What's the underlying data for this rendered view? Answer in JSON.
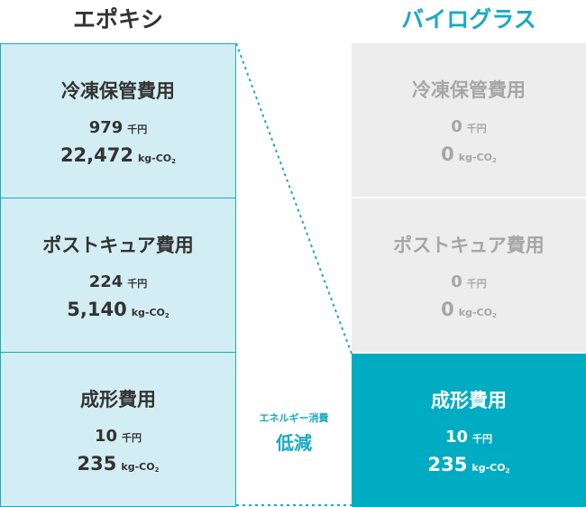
{
  "headers": {
    "left": "エポキシ",
    "right": "バイログラス"
  },
  "rows": [
    {
      "label": "冷凍保管費用",
      "left": {
        "cost": "979",
        "cost_unit": "千円",
        "co2": "22,472",
        "co2_unit": "kg-CO",
        "co2_sub": "2"
      },
      "right": {
        "cost": "0",
        "cost_unit": "千円",
        "co2": "0",
        "co2_unit": "kg-CO",
        "co2_sub": "2"
      }
    },
    {
      "label": "ポストキュア費用",
      "left": {
        "cost": "224",
        "cost_unit": "千円",
        "co2": "5,140",
        "co2_unit": "kg-CO",
        "co2_sub": "2"
      },
      "right": {
        "cost": "0",
        "cost_unit": "千円",
        "co2": "0",
        "co2_unit": "kg-CO",
        "co2_sub": "2"
      }
    },
    {
      "label": "成形費用",
      "left": {
        "cost": "10",
        "cost_unit": "千円",
        "co2": "235",
        "co2_unit": "kg-CO",
        "co2_sub": "2"
      },
      "right": {
        "cost": "10",
        "cost_unit": "千円",
        "co2": "235",
        "co2_unit": "kg-CO",
        "co2_sub": "2"
      }
    }
  ],
  "reduction": {
    "sub": "エネルギー消費",
    "main": "低減"
  },
  "colors": {
    "accent": "#1aa9c2",
    "left_fill": "#d3edf4",
    "right_dim": "#ededed",
    "right_active": "#00acc1"
  }
}
